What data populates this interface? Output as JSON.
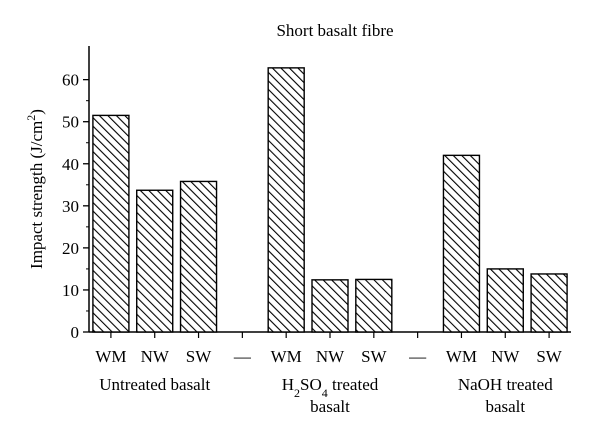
{
  "chart_data": {
    "type": "bar",
    "title": "Short basalt fibre",
    "ylabel": "Impact strength (J/cm²)",
    "ylabel_parts": {
      "main": "Impact strength (J/cm",
      "sup": "2",
      "tail": ")"
    },
    "ylim": [
      0,
      68
    ],
    "yticks": [
      0,
      10,
      20,
      30,
      40,
      50,
      60
    ],
    "grid": false,
    "legend": "none",
    "bar_fill": "hatched",
    "bar_color": "#000000",
    "categories": [
      "WM",
      "NW",
      "SW",
      "—",
      "WM",
      "NW",
      "SW",
      "—",
      "WM",
      "NW",
      "SW"
    ],
    "values": [
      51.5,
      33.7,
      35.8,
      null,
      62.8,
      12.4,
      12.5,
      null,
      42.0,
      15.0,
      13.8
    ],
    "groups": [
      {
        "label_lines": [
          "Untreated basalt"
        ]
      },
      {
        "label_html": "H<sub>2</sub>SO<sub>4</sub> treated",
        "label_line2": "basalt"
      },
      {
        "label_lines": [
          "NaOH treated",
          "basalt"
        ]
      }
    ]
  }
}
